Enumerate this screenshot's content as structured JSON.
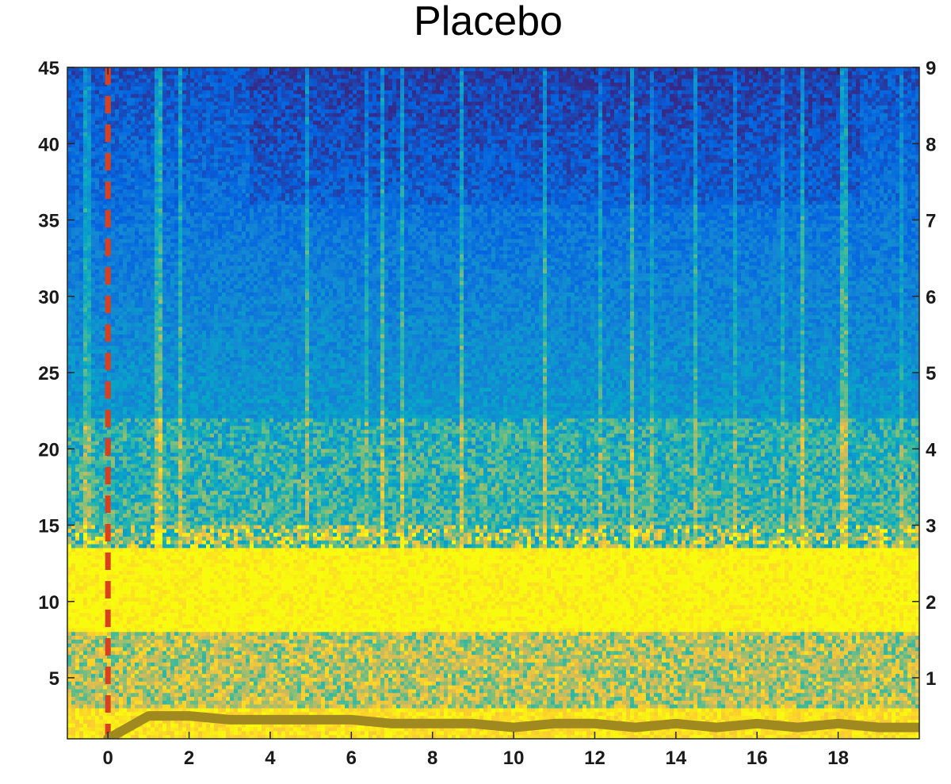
{
  "chart_data": {
    "type": "heatmap",
    "title": "Placebo",
    "xlabel": "",
    "ylabel": "",
    "y2label": "",
    "xlim": [
      -1,
      20
    ],
    "ylim": [
      1,
      45
    ],
    "y2lim": [
      0.2,
      9
    ],
    "x_ticks": [
      0,
      2,
      4,
      6,
      8,
      10,
      12,
      14,
      16,
      18
    ],
    "y_ticks": [
      5,
      10,
      15,
      20,
      25,
      30,
      35,
      40,
      45
    ],
    "y2_ticks": [
      1,
      2,
      3,
      4,
      5,
      6,
      7,
      8,
      9
    ],
    "grid": false,
    "colormap": [
      "#352a87",
      "#0363e1",
      "#1485d4",
      "#06a7c6",
      "#38b99e",
      "#92bf73",
      "#d9ba56",
      "#fcce2e",
      "#f9fb0e"
    ],
    "bands": [
      {
        "freq_range": [
          1,
          3
        ],
        "level": "high"
      },
      {
        "freq_range": [
          3,
          8
        ],
        "level": "mixed"
      },
      {
        "freq_range": [
          8,
          13.5
        ],
        "level": "highest"
      },
      {
        "freq_range": [
          13.5,
          22
        ],
        "level": "medium"
      },
      {
        "freq_range": [
          22,
          45
        ],
        "level": "low"
      }
    ],
    "event_marker": {
      "x": 0,
      "color": "#d9411e",
      "style": "dashed"
    },
    "series": [
      {
        "axis": "right",
        "color": "#a08a20",
        "x": [
          0,
          1,
          2,
          3,
          4,
          5,
          6,
          7,
          8,
          9,
          10,
          11,
          12,
          13,
          14,
          15,
          16,
          17,
          18,
          19,
          20
        ],
        "values": [
          0.2,
          0.5,
          0.5,
          0.45,
          0.45,
          0.45,
          0.45,
          0.4,
          0.4,
          0.4,
          0.35,
          0.4,
          0.4,
          0.35,
          0.4,
          0.35,
          0.4,
          0.35,
          0.4,
          0.35,
          0.35
        ]
      }
    ]
  }
}
